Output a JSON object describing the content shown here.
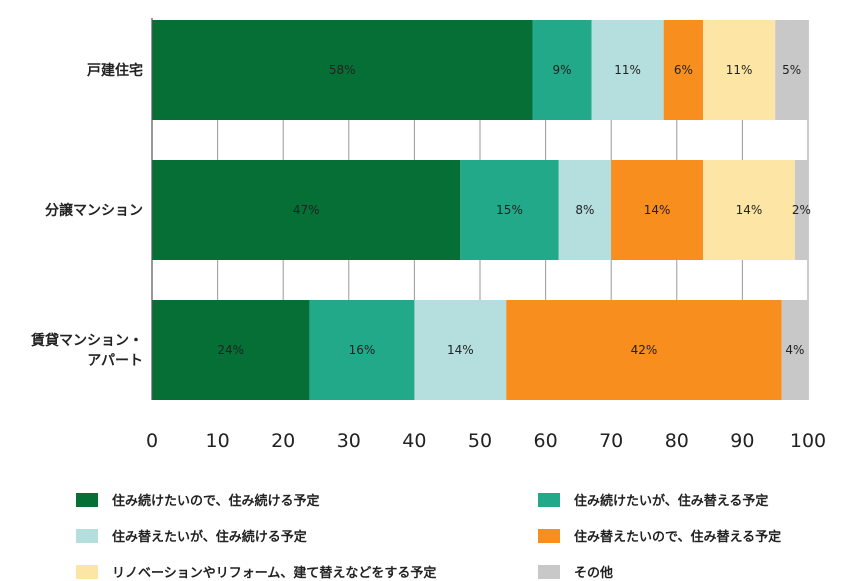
{
  "chart_data": {
    "type": "bar",
    "orientation": "horizontal",
    "stacked": true,
    "categories": [
      "戸建住宅",
      "分譲マンション",
      "賃貸マンション・アパート"
    ],
    "category_lines": [
      [
        "戸建住宅"
      ],
      [
        "分譲マンション"
      ],
      [
        "賃貸マンション・",
        "アパート"
      ]
    ],
    "series": [
      {
        "name": "住み続けたいので、住み続ける予定",
        "color": "#066f35",
        "values": [
          58,
          47,
          24
        ],
        "labels": [
          "58%",
          "47%",
          "24%"
        ]
      },
      {
        "name": "住み続けたいが、住み替える予定",
        "color": "#21a98a",
        "values": [
          9,
          15,
          16
        ],
        "labels": [
          "9%",
          "15%",
          "16%"
        ]
      },
      {
        "name": "住み替えたいが、住み続ける予定",
        "color": "#b5dfdf",
        "values": [
          11,
          8,
          14
        ],
        "labels": [
          "11%",
          "8%",
          "14%"
        ]
      },
      {
        "name": "住み替えたいので、住み替える予定",
        "color": "#f78e1e",
        "values": [
          6,
          14,
          42
        ],
        "labels": [
          "6%",
          "14%",
          "42%"
        ]
      },
      {
        "name": "リノベーションやリフォーム、建て替えなどをする予定",
        "color": "#fde6a5",
        "values": [
          11,
          14,
          0
        ],
        "labels": [
          "11%",
          "14%",
          ""
        ]
      },
      {
        "name": "その他",
        "color": "#c8c8c8",
        "values": [
          5,
          2,
          4
        ],
        "labels": [
          "5%",
          "2%",
          "4%"
        ]
      }
    ],
    "xlim": [
      0,
      100
    ],
    "xticks": [
      "0",
      "10",
      "20",
      "30",
      "40",
      "50",
      "60",
      "70",
      "80",
      "90",
      "100"
    ],
    "grid": "vertical",
    "legend_position": "bottom"
  }
}
